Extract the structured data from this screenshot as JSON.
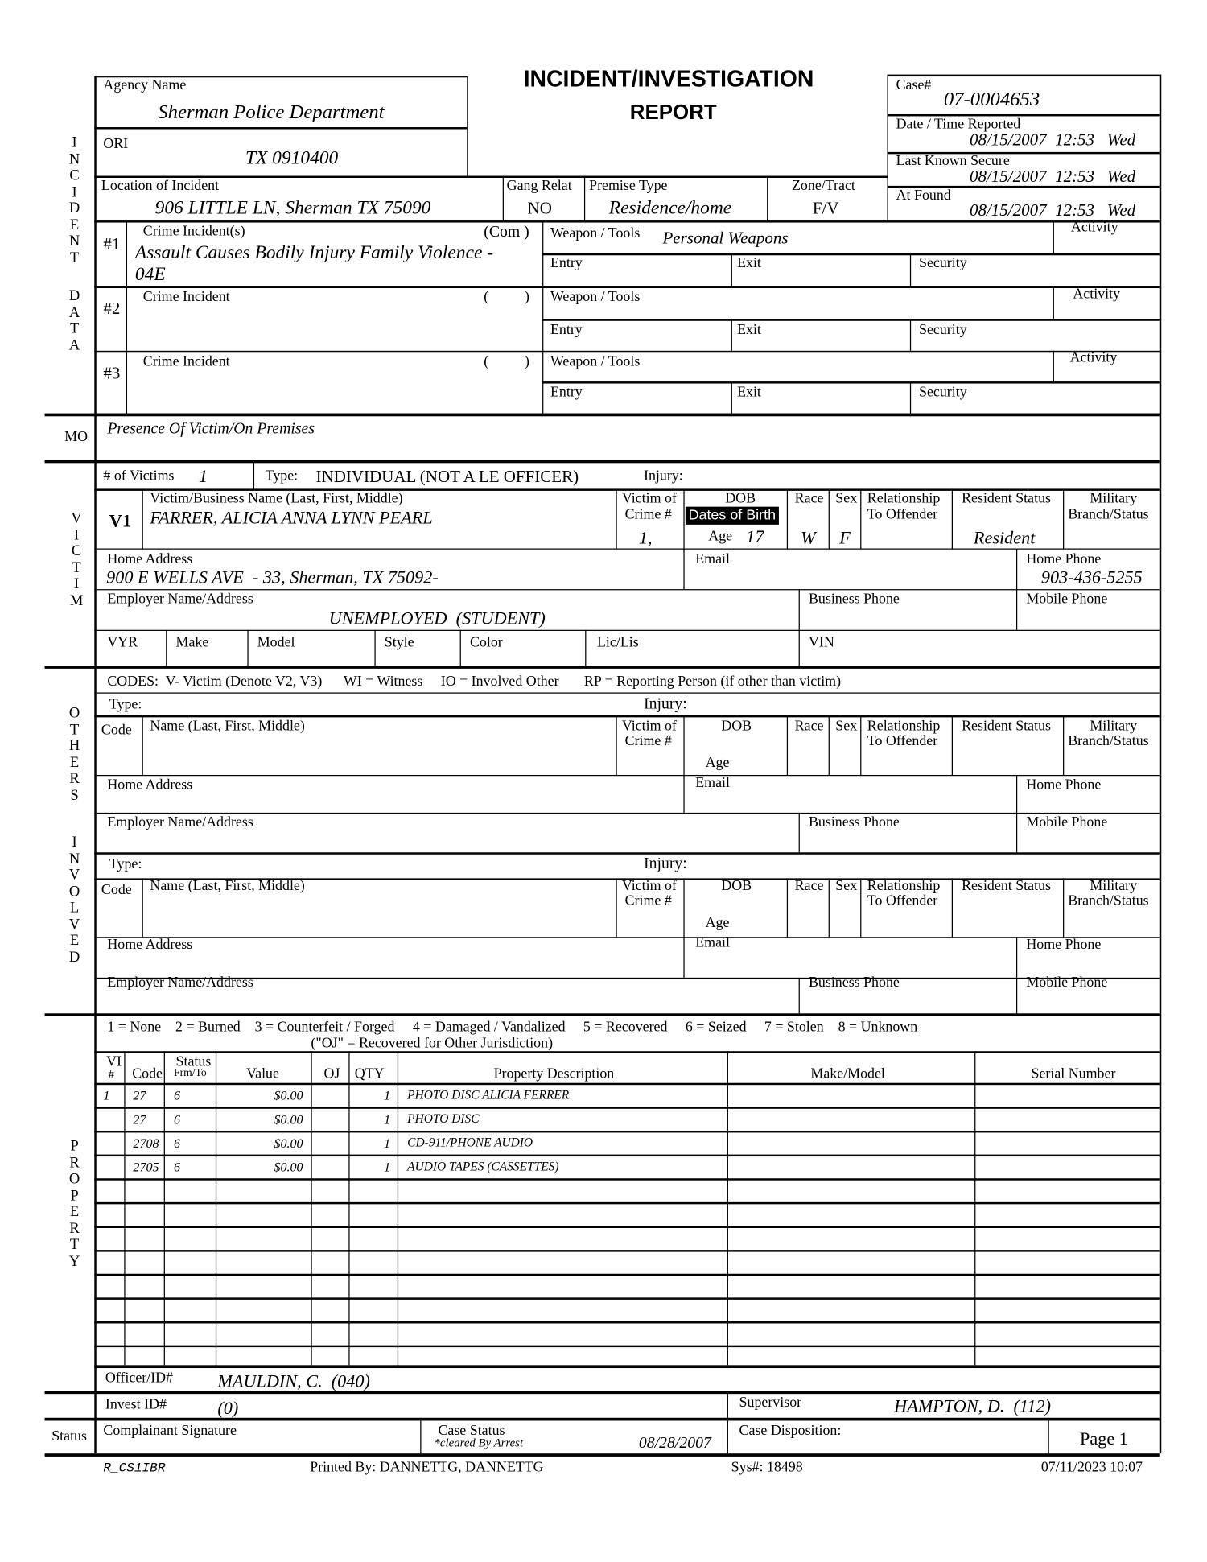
{
  "header": {
    "title1": "INCIDENT/INVESTIGATION",
    "title2": "REPORT"
  },
  "section_labels": {
    "incident": "INCIDENT",
    "data": "DATA",
    "mo": "MO",
    "victim": "VICTIM",
    "others": "OTHERS",
    "involved": "INVOLVED",
    "property": "PROPERTY",
    "status": "Status"
  },
  "agency": {
    "label": "Agency Name",
    "value": "Sherman Police Department"
  },
  "ori": {
    "label": "ORI",
    "value": "TX 0910400"
  },
  "case": {
    "label": "Case#",
    "value": "07-0004653"
  },
  "reported": {
    "label": "Date / Time Reported",
    "value": "08/15/2007  12:53   Wed"
  },
  "last_secure": {
    "label": "Last Known Secure",
    "value": "08/15/2007  12:53   Wed"
  },
  "found": {
    "label": "At Found",
    "value": "08/15/2007  12:53   Wed"
  },
  "location": {
    "label": "Location of Incident",
    "value": "906 LITTLE LN, Sherman TX 75090"
  },
  "gang": {
    "label": "Gang Relat",
    "value": "NO"
  },
  "premise": {
    "label": "Premise Type",
    "value": "Residence/home"
  },
  "zone": {
    "label": "Zone/Tract",
    "value": "F/V"
  },
  "crimes": [
    {
      "num": "#1",
      "label": "Crime Incident(s)",
      "paren": "(Com )",
      "value1": "Assault Causes Bodily Injury Family Violence -",
      "value2": "04E",
      "weapon_label": "Weapon / Tools",
      "weapon": "Personal Weapons",
      "activity": "Activity",
      "entry": "Entry",
      "exit": "Exit",
      "security": "Security"
    },
    {
      "num": "#2",
      "label": "Crime Incident",
      "paren": "(          )",
      "weapon_label": "Weapon / Tools",
      "activity": "Activity",
      "entry": "Entry",
      "exit": "Exit",
      "security": "Security"
    },
    {
      "num": "#3",
      "label": "Crime Incident",
      "paren": "(          )",
      "weapon_label": "Weapon / Tools",
      "activity": "Activity",
      "entry": "Entry",
      "exit": "Exit",
      "security": "Security"
    }
  ],
  "mo": {
    "value": "Presence Of Victim/On Premises"
  },
  "victims": {
    "count_label": "# of Victims",
    "count": "1",
    "type_label": "Type:",
    "type": "INDIVIDUAL (NOT A LE OFFICER)",
    "injury_label": "Injury:"
  },
  "v1": {
    "id": "V1",
    "name_label": "Victim/Business Name (Last, First, Middle)",
    "name": "FARRER, ALICIA ANNA LYNN PEARL",
    "victim_of_label1": "Victim of",
    "victim_of_label2": "Crime #",
    "victim_of": "1,",
    "dob_label": "DOB",
    "dob_tooltip": "Dates of Birth",
    "age_label": "Age",
    "age": "17",
    "race_label": "Race",
    "race": "W",
    "sex_label": "Sex",
    "sex": "F",
    "rel_label1": "Relationship",
    "rel_label2": "To Offender",
    "res_label": "Resident Status",
    "res": "Resident",
    "mil_label1": "Military",
    "mil_label2": "Branch/Status",
    "home_label": "Home Address",
    "home": "900 E WELLS AVE  - 33, Sherman, TX 75092-",
    "email_label": "Email",
    "phone_label": "Home Phone",
    "phone": "903-436-5255",
    "employer_label": "Employer Name/Address",
    "employer": "UNEMPLOYED  (STUDENT)",
    "business_label": "Business Phone",
    "mobile_label": "Mobile Phone"
  },
  "vehicle": {
    "vyr": "VYR",
    "make": "Make",
    "model": "Model",
    "style": "Style",
    "color": "Color",
    "lic": "Lic/Lis",
    "vin": "VIN"
  },
  "others": {
    "codes": "CODES:  V- Victim (Denote V2, V3)      WI = Witness     IO = Involved Other       RP = Reporting Person (if other than victim)",
    "type_label": "Type:",
    "injury_label": "Injury:",
    "code_label": "Code",
    "name_label": "Name (Last, First, Middle)",
    "victim_of_label1": "Victim of",
    "victim_of_label2": "Crime #",
    "dob_label": "DOB",
    "age_label": "Age",
    "race_label": "Race",
    "sex_label": "Sex",
    "rel_label1": "Relationship",
    "rel_label2": "To Offender",
    "res_label": "Resident Status",
    "mil_label1": "Military",
    "mil_label2": "Branch/Status",
    "home_label": "Home Address",
    "email_label": "Email",
    "phone_label": "Home Phone",
    "employer_label": "Employer Name/Address",
    "business_label": "Business Phone",
    "mobile_label": "Mobile Phone"
  },
  "property": {
    "legend1": "1 = None    2 = Burned    3 = Counterfeit / Forged     4 = Damaged / Vandalized     5 = Recovered     6 = Seized     7 = Stolen    8 = Unknown",
    "legend2": "(\"OJ\" = Recovered for Other Jurisdiction)",
    "headers": {
      "vi1": "VI",
      "vi2": "#",
      "code": "Code",
      "status1": "Status",
      "status2": "Frm/To",
      "value": "Value",
      "oj": "OJ",
      "qty": "QTY",
      "desc": "Property Description",
      "make": "Make/Model",
      "serial": "Serial Number"
    },
    "rows": [
      {
        "vi": "1",
        "code": "27",
        "status": "6",
        "value": "$0.00",
        "qty": "1",
        "desc": "PHOTO DISC ALICIA FERRER"
      },
      {
        "vi": "",
        "code": "27",
        "status": "6",
        "value": "$0.00",
        "qty": "1",
        "desc": "PHOTO DISC"
      },
      {
        "vi": "",
        "code": "2708",
        "status": "6",
        "value": "$0.00",
        "qty": "1",
        "desc": "CD-911/PHONE AUDIO"
      },
      {
        "vi": "",
        "code": "2705",
        "status": "6",
        "value": "$0.00",
        "qty": "1",
        "desc": "AUDIO TAPES (CASSETTES)"
      }
    ]
  },
  "officer": {
    "label": "Officer/ID#",
    "value": "MAULDIN, C.  (040)"
  },
  "invest": {
    "label": "Invest ID#",
    "value": "(0)"
  },
  "supervisor": {
    "label": "Supervisor",
    "value": "HAMPTON, D.  (112)"
  },
  "status_row": {
    "complainant_label": "Complainant Signature",
    "case_status_label": "Case Status",
    "case_status": "*cleared By Arrest",
    "date": "08/28/2007",
    "disposition_label": "Case Disposition:",
    "page": "Page 1"
  },
  "footer": {
    "form": "R_CS1IBR",
    "printed_by": "Printed By: DANNETTG, DANNETTG",
    "sys": "Sys#: 18498",
    "printed_at": "07/11/2023 10:07"
  }
}
